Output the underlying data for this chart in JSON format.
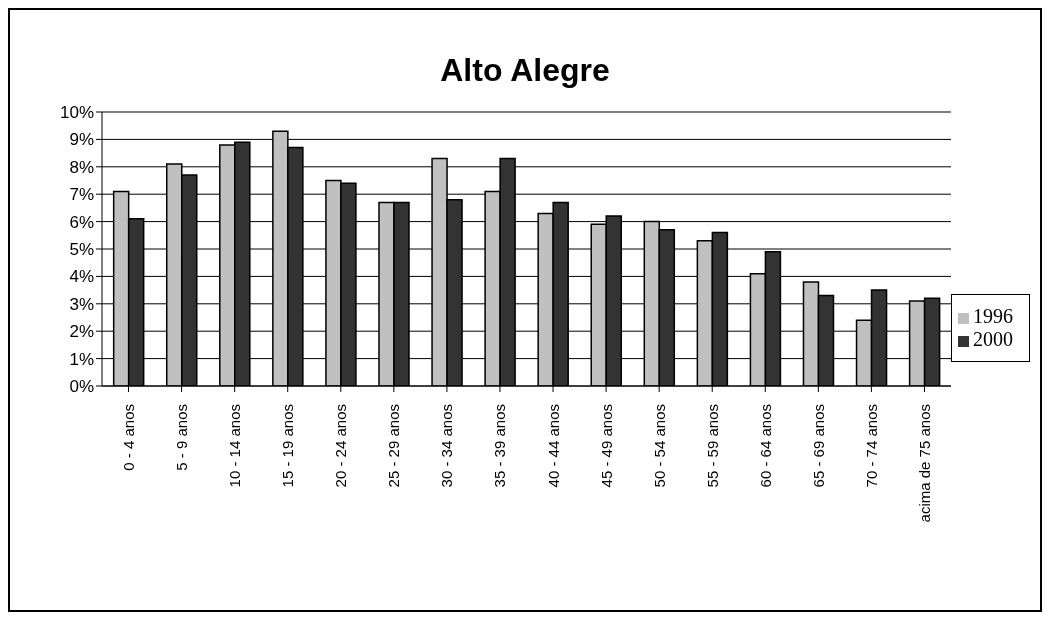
{
  "chart_data": {
    "type": "bar",
    "title": "Alto Alegre",
    "categories": [
      "0 - 4 anos",
      "5 - 9 anos",
      "10 - 14 anos",
      "15 - 19 anos",
      "20 - 24 anos",
      "25 - 29 anos",
      "30 - 34 anos",
      "35 - 39 anos",
      "40 - 44 anos",
      "45 - 49 anos",
      "50 - 54 anos",
      "55 - 59 anos",
      "60 - 64 anos",
      "65 - 69 anos",
      "70 - 74 anos",
      "acima de 75 anos"
    ],
    "series": [
      {
        "name": "1996",
        "color": "#c0c0c0",
        "values": [
          7.1,
          8.1,
          8.8,
          9.3,
          7.5,
          6.7,
          8.3,
          7.1,
          6.3,
          5.9,
          6.0,
          5.3,
          4.1,
          3.8,
          2.4,
          3.1
        ]
      },
      {
        "name": "2000",
        "color": "#333333",
        "values": [
          6.1,
          7.7,
          8.9,
          8.7,
          7.4,
          6.7,
          6.8,
          8.3,
          6.7,
          6.2,
          5.7,
          5.6,
          4.9,
          3.3,
          3.5,
          3.2
        ]
      }
    ],
    "ylim": [
      0,
      10
    ],
    "yticks": [
      {
        "value": 0,
        "label": "0%"
      },
      {
        "value": 1,
        "label": "1%"
      },
      {
        "value": 2,
        "label": "2%"
      },
      {
        "value": 3,
        "label": "3%"
      },
      {
        "value": 4,
        "label": "4%"
      },
      {
        "value": 5,
        "label": "5%"
      },
      {
        "value": 6,
        "label": "6%"
      },
      {
        "value": 7,
        "label": "7%"
      },
      {
        "value": 8,
        "label": "8%"
      },
      {
        "value": 9,
        "label": "9%"
      },
      {
        "value": 10,
        "label": "10%"
      }
    ],
    "grid": "y",
    "legend": "right"
  }
}
